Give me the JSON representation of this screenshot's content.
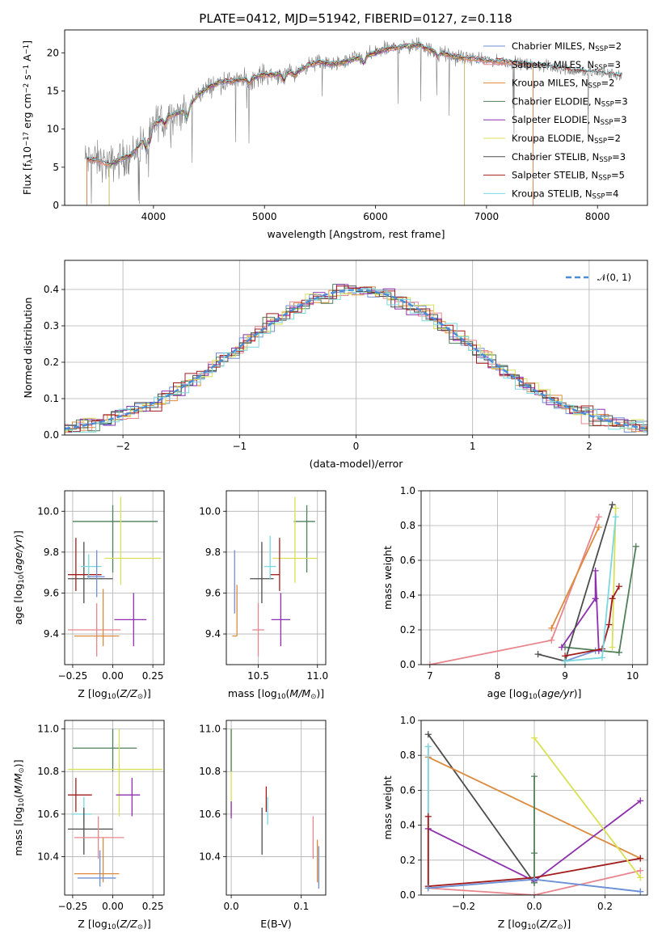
{
  "figure": {
    "title": "PLATE=0412, MJD=51942, FIBERID=0127, z=0.118"
  },
  "colors": {
    "Chabrier MILES": "#6f8fd6",
    "Salpeter MILES": "#e8868e",
    "Kroupa MILES": "#dc8a3c",
    "Chabrier ELODIE": "#4f7f59",
    "Salpeter ELODIE": "#8e2fae",
    "Kroupa ELODIE": "#d8e055",
    "Chabrier STELIB": "#4d4d4d",
    "Salpeter STELIB": "#a31c1c",
    "Kroupa STELIB": "#7ad8e0",
    "normal": "#4a8cd8",
    "data": "#7f7f7f"
  },
  "chart_data": [
    {
      "id": "spectrum",
      "type": "line",
      "xlabel": "wavelength [Angstrom, rest frame]",
      "ylabel": "Flux [f_λ10^-17 erg cm^-2 s^-1 A^-1]",
      "xlim": [
        3200,
        8450
      ],
      "ylim": [
        0,
        23
      ],
      "xticks": [
        4000,
        5000,
        6000,
        7000,
        8000
      ],
      "yticks": [
        0,
        5,
        10,
        15,
        20
      ],
      "grid": false,
      "legend_placement": "right",
      "legend": [
        {
          "label": "Chabrier MILES, N",
          "sub": "SSP",
          "suffix": "=2",
          "color": "#6f8fd6"
        },
        {
          "label": "Salpeter MILES, N",
          "sub": "SSP",
          "suffix": "=3",
          "color": "#e8868e"
        },
        {
          "label": "Kroupa MILES, N",
          "sub": "SSP",
          "suffix": "=2",
          "color": "#dc8a3c"
        },
        {
          "label": "Chabrier ELODIE, N",
          "sub": "SSP",
          "suffix": "=3",
          "color": "#4f7f59"
        },
        {
          "label": "Salpeter ELODIE, N",
          "sub": "SSP",
          "suffix": "=3",
          "color": "#8e2fae"
        },
        {
          "label": "Kroupa ELODIE, N",
          "sub": "SSP",
          "suffix": "=2",
          "color": "#d8e055"
        },
        {
          "label": "Chabrier STELIB, N",
          "sub": "SSP",
          "suffix": "=3",
          "color": "#4d4d4d"
        },
        {
          "label": "Salpeter STELIB, N",
          "sub": "SSP",
          "suffix": "=5",
          "color": "#a31c1c"
        },
        {
          "label": "Kroupa STELIB, N",
          "sub": "SSP",
          "suffix": "=4",
          "color": "#7ad8e0"
        }
      ],
      "continuum": {
        "wavelength": [
          3400,
          3500,
          3600,
          3700,
          3800,
          3900,
          4000,
          4100,
          4200,
          4300,
          4400,
          4500,
          4600,
          4700,
          4800,
          4900,
          5000,
          5100,
          5200,
          5300,
          5400,
          5500,
          5600,
          5700,
          5800,
          5900,
          6000,
          6100,
          6200,
          6300,
          6400,
          6500,
          6600,
          6700,
          6800,
          6900,
          7000,
          7100,
          7200,
          7300,
          7400,
          7500,
          7600,
          7700,
          7800,
          7900,
          8000,
          8100,
          8200
        ],
        "flux": [
          6.0,
          5.9,
          5.3,
          6.0,
          6.6,
          8.4,
          10.5,
          11.5,
          12.0,
          12.5,
          14.5,
          15.5,
          16.2,
          16.3,
          16.5,
          16.7,
          17.2,
          17.1,
          17.4,
          17.6,
          18.4,
          18.8,
          18.5,
          18.7,
          19.2,
          19.5,
          20.0,
          20.5,
          20.7,
          20.9,
          21.0,
          20.3,
          20.0,
          19.5,
          19.3,
          19.2,
          19.0,
          18.9,
          18.8,
          18.6,
          18.4,
          18.3,
          18.1,
          17.9,
          17.6,
          17.5,
          17.4,
          17.2,
          17.0
        ]
      }
    },
    {
      "id": "residuals",
      "type": "line",
      "xlabel": "(data-model)/error",
      "ylabel": "Normed distribution",
      "xlim": [
        -2.5,
        2.5
      ],
      "ylim": [
        0,
        0.48
      ],
      "xticks": [
        -2,
        -1,
        0,
        1,
        2
      ],
      "yticks": [
        0.0,
        0.1,
        0.2,
        0.3,
        0.4
      ],
      "grid": true,
      "legend_placement": "top-right",
      "normal_label": "𝒩(0, 1)",
      "normal": {
        "mu": 0,
        "sigma": 1
      }
    },
    {
      "id": "age-vs-Z",
      "type": "scatter",
      "xlabel": "Z [log10(Z/Z⊙)]",
      "ylabel": "age [log10(age/yr)]",
      "xlim": [
        -0.3,
        0.32
      ],
      "ylim": [
        9.25,
        10.1
      ],
      "xticks": [
        -0.25,
        0.0,
        0.25
      ],
      "yticks": [
        9.4,
        9.6,
        9.8,
        10.0
      ],
      "grid": true,
      "points": [
        {
          "model": "Chabrier ELODIE",
          "x": 0.0,
          "xerr": [
            0.25,
            0.28
          ],
          "y": 9.95,
          "yerr": [
            0.25,
            0.08
          ]
        },
        {
          "model": "Kroupa ELODIE",
          "x": 0.05,
          "xerr": [
            0.1,
            0.25
          ],
          "y": 9.77,
          "yerr": [
            0.13,
            0.3
          ]
        },
        {
          "model": "Chabrier STELIB",
          "x": -0.18,
          "xerr": [
            0.1,
            0.18
          ],
          "y": 9.67,
          "yerr": [
            0.12,
            0.18
          ]
        },
        {
          "model": "Salpeter STELIB",
          "x": -0.23,
          "xerr": [
            0.05,
            0.16
          ],
          "y": 9.69,
          "yerr": [
            0.08,
            0.18
          ]
        },
        {
          "model": "Kroupa STELIB",
          "x": -0.15,
          "xerr": [
            0.05,
            0.08
          ],
          "y": 9.73,
          "yerr": [
            0.06,
            0.06
          ]
        },
        {
          "model": "Chabrier MILES",
          "x": -0.1,
          "xerr": [
            0.06,
            0.05
          ],
          "y": 9.68,
          "yerr": [
            0.1,
            0.13
          ]
        },
        {
          "model": "Salpeter ELODIE",
          "x": 0.13,
          "xerr": [
            0.12,
            0.08
          ],
          "y": 9.47,
          "yerr": [
            0.13,
            0.13
          ]
        },
        {
          "model": "Salpeter MILES",
          "x": -0.1,
          "xerr": [
            0.18,
            0.15
          ],
          "y": 9.42,
          "yerr": [
            0.13,
            0.13
          ]
        },
        {
          "model": "Kroupa MILES",
          "x": -0.06,
          "xerr": [
            0.18,
            0.1
          ],
          "y": 9.39,
          "yerr": [
            0.05,
            0.23
          ]
        }
      ]
    },
    {
      "id": "age-vs-mass",
      "type": "scatter",
      "xlabel": "mass [log10(M/M⊙)]",
      "ylabel": "",
      "xlim": [
        10.23,
        11.07
      ],
      "ylim": [
        9.25,
        10.1
      ],
      "xticks": [
        10.5,
        11.0
      ],
      "yticks": [
        9.4,
        9.6,
        9.8,
        10.0
      ],
      "grid": true,
      "points": [
        {
          "model": "Chabrier ELODIE",
          "x": 10.91,
          "xerr": [
            0.11,
            0.07
          ],
          "y": 9.95,
          "yerr": [
            0.25,
            0.08
          ]
        },
        {
          "model": "Kroupa ELODIE",
          "x": 10.81,
          "xerr": [
            0.19,
            0.19
          ],
          "y": 9.77,
          "yerr": [
            0.12,
            0.3
          ]
        },
        {
          "model": "Chabrier STELIB",
          "x": 10.53,
          "xerr": [
            0.1,
            0.1
          ],
          "y": 9.67,
          "yerr": [
            0.12,
            0.18
          ]
        },
        {
          "model": "Salpeter STELIB",
          "x": 10.68,
          "xerr": [
            0.08,
            0.0
          ],
          "y": 9.69,
          "yerr": [
            0.08,
            0.18
          ]
        },
        {
          "model": "Kroupa STELIB",
          "x": 10.6,
          "xerr": [
            0.05,
            0.05
          ],
          "y": 9.73,
          "yerr": [
            0.06,
            0.15
          ]
        },
        {
          "model": "Chabrier MILES",
          "x": 10.3,
          "xerr": [
            0.0,
            0.0
          ],
          "y": 9.68,
          "yerr": [
            0.18,
            0.13
          ]
        },
        {
          "model": "Salpeter ELODIE",
          "x": 10.69,
          "xerr": [
            0.08,
            0.08
          ],
          "y": 9.47,
          "yerr": [
            0.13,
            0.13
          ]
        },
        {
          "model": "Salpeter MILES",
          "x": 10.5,
          "xerr": [
            0.05,
            0.05
          ],
          "y": 9.42,
          "yerr": [
            0.13,
            0.13
          ]
        },
        {
          "model": "Kroupa MILES",
          "x": 10.32,
          "xerr": [
            0.04,
            0.0
          ],
          "y": 9.39,
          "yerr": [
            0.0,
            0.25
          ]
        }
      ]
    },
    {
      "id": "weight-vs-age",
      "type": "line",
      "xlabel": "age [log10(age/yr)]",
      "ylabel": "mass weight",
      "xlim": [
        6.87,
        10.22
      ],
      "ylim": [
        0,
        1.0
      ],
      "xticks": [
        7,
        8,
        9,
        10
      ],
      "yticks": [
        0.0,
        0.2,
        0.4,
        0.6,
        0.8,
        1.0
      ],
      "grid": true,
      "series": [
        {
          "model": "Salpeter MILES",
          "x": [
            7.0,
            8.8,
            9.5
          ],
          "y": [
            0.0,
            0.14,
            0.85
          ]
        },
        {
          "model": "Kroupa MILES",
          "x": [
            8.8,
            9.5
          ],
          "y": [
            0.21,
            0.79
          ]
        },
        {
          "model": "Chabrier MILES",
          "x": [
            9.0,
            9.45
          ],
          "y": [
            0.02,
            0.08
          ]
        },
        {
          "model": "Chabrier ELODIE",
          "x": [
            9.0,
            9.8,
            10.05
          ],
          "y": [
            0.1,
            0.07,
            0.68
          ]
        },
        {
          "model": "Salpeter ELODIE",
          "x": [
            8.95,
            9.45,
            9.45,
            9.5
          ],
          "y": [
            0.1,
            0.38,
            0.54,
            0.08
          ]
        },
        {
          "model": "Kroupa ELODIE",
          "x": [
            9.7,
            9.75
          ],
          "y": [
            0.1,
            0.9
          ]
        },
        {
          "model": "Chabrier STELIB",
          "x": [
            8.6,
            9.0,
            9.7
          ],
          "y": [
            0.06,
            0.02,
            0.92
          ]
        },
        {
          "model": "Salpeter STELIB",
          "x": [
            9.0,
            9.55,
            9.65,
            9.7,
            9.8
          ],
          "y": [
            0.05,
            0.09,
            0.23,
            0.38,
            0.45
          ]
        },
        {
          "model": "Kroupa STELIB",
          "x": [
            9.0,
            9.55,
            9.75
          ],
          "y": [
            0.02,
            0.04,
            0.85
          ]
        }
      ]
    },
    {
      "id": "mass-vs-Z",
      "type": "scatter",
      "xlabel": "Z [log10(Z/Z⊙)]",
      "ylabel": "mass [log10(M/M⊙)]",
      "xlim": [
        -0.3,
        0.32
      ],
      "ylim": [
        10.22,
        11.04
      ],
      "xticks": [
        -0.25,
        0.0,
        0.25
      ],
      "yticks": [
        10.4,
        10.6,
        10.8,
        11.0
      ],
      "grid": true,
      "points": [
        {
          "model": "Chabrier ELODIE",
          "x": 0.0,
          "xerr": [
            0.25,
            0.15
          ],
          "y": 10.91,
          "yerr": [
            0.11,
            0.09
          ]
        },
        {
          "model": "Kroupa ELODIE",
          "x": 0.04,
          "xerr": [
            0.32,
            0.27
          ],
          "y": 10.81,
          "yerr": [
            0.22,
            0.19
          ]
        },
        {
          "model": "Salpeter ELODIE",
          "x": 0.12,
          "xerr": [
            0.1,
            0.05
          ],
          "y": 10.69,
          "yerr": [
            0.1,
            0.08
          ]
        },
        {
          "model": "Salpeter STELIB",
          "x": -0.23,
          "xerr": [
            0.05,
            0.1
          ],
          "y": 10.69,
          "yerr": [
            0.08,
            0.08
          ]
        },
        {
          "model": "Kroupa STELIB",
          "x": -0.18,
          "xerr": [
            0.08,
            0.05
          ],
          "y": 10.6,
          "yerr": [
            0.05,
            0.08
          ]
        },
        {
          "model": "Chabrier STELIB",
          "x": -0.18,
          "xerr": [
            0.1,
            0.18
          ],
          "y": 10.53,
          "yerr": [
            0.12,
            0.1
          ]
        },
        {
          "model": "Salpeter MILES",
          "x": -0.09,
          "xerr": [
            0.15,
            0.16
          ],
          "y": 10.49,
          "yerr": [
            0.1,
            0.1
          ]
        },
        {
          "model": "Kroupa MILES",
          "x": -0.06,
          "xerr": [
            0.18,
            0.1
          ],
          "y": 10.32,
          "yerr": [
            0.04,
            0.17
          ]
        },
        {
          "model": "Chabrier MILES",
          "x": -0.08,
          "xerr": [
            0.14,
            0.1
          ],
          "y": 10.3,
          "yerr": [
            0.04,
            0.13
          ]
        }
      ]
    },
    {
      "id": "mass-vs-EBV",
      "type": "scatter",
      "xlabel": "E(B-V)",
      "ylabel": "",
      "xlim": [
        -0.007,
        0.135
      ],
      "ylim": [
        10.22,
        11.04
      ],
      "xticks": [
        0.0,
        0.1
      ],
      "yticks": [
        10.4,
        10.6,
        10.8,
        11.0
      ],
      "grid": true,
      "points": [
        {
          "model": "Kroupa ELODIE",
          "x": 0.0,
          "y": 10.81,
          "yerr": [
            0.22,
            0.19
          ]
        },
        {
          "model": "Chabrier ELODIE",
          "x": 0.0,
          "y": 10.91,
          "yerr": [
            0.11,
            0.09
          ]
        },
        {
          "model": "Salpeter ELODIE",
          "x": 0.0,
          "y": 10.62,
          "yerr": [
            0.04,
            0.04
          ]
        },
        {
          "model": "Chabrier STELIB",
          "x": 0.044,
          "y": 10.52,
          "yerr": [
            0.11,
            0.11
          ]
        },
        {
          "model": "Salpeter STELIB",
          "x": 0.05,
          "y": 10.69,
          "yerr": [
            0.08,
            0.04
          ]
        },
        {
          "model": "Kroupa STELIB",
          "x": 0.052,
          "y": 10.6,
          "yerr": [
            0.05,
            0.08
          ]
        },
        {
          "model": "Salpeter MILES",
          "x": 0.117,
          "y": 10.49,
          "yerr": [
            0.1,
            0.1
          ]
        },
        {
          "model": "Kroupa MILES",
          "x": 0.123,
          "y": 10.38,
          "yerr": [
            0.1,
            0.1
          ]
        },
        {
          "model": "Chabrier MILES",
          "x": 0.125,
          "y": 10.35,
          "yerr": [
            0.1,
            0.1
          ]
        }
      ]
    },
    {
      "id": "weight-vs-Z",
      "type": "line",
      "xlabel": "Z [log10(Z/Z⊙)]",
      "ylabel": "mass weight",
      "xlim": [
        -0.32,
        0.32
      ],
      "ylim": [
        0,
        1.0
      ],
      "xticks": [
        -0.2,
        0.0,
        0.2
      ],
      "yticks": [
        0.0,
        0.2,
        0.4,
        0.6,
        0.8,
        1.0
      ],
      "grid": true,
      "series": [
        {
          "model": "Chabrier STELIB",
          "x": [
            -0.3,
            0.0
          ],
          "y": [
            0.92,
            0.07
          ]
        },
        {
          "model": "Kroupa MILES",
          "x": [
            -0.3,
            0.3
          ],
          "y": [
            0.79,
            0.21
          ]
        },
        {
          "model": "Salpeter MILES",
          "x": [
            -0.3,
            -0.3,
            0.0,
            0.3
          ],
          "y": [
            0.85,
            0.04,
            0.0,
            0.14
          ]
        },
        {
          "model": "Kroupa STELIB",
          "x": [
            -0.3,
            -0.3,
            0.0,
            0.3
          ],
          "y": [
            0.85,
            0.04,
            0.09,
            0.02
          ]
        },
        {
          "model": "Salpeter ELODIE",
          "x": [
            -0.3,
            0.0,
            0.3
          ],
          "y": [
            0.38,
            0.08,
            0.54
          ]
        },
        {
          "model": "Salpeter STELIB",
          "x": [
            -0.3,
            -0.3,
            0.0,
            0.3
          ],
          "y": [
            0.45,
            0.05,
            0.1,
            0.21
          ]
        },
        {
          "model": "Kroupa ELODIE",
          "x": [
            0.0,
            0.3
          ],
          "y": [
            0.9,
            0.1
          ]
        },
        {
          "model": "Chabrier ELODIE",
          "x": [
            0.0,
            0.0,
            0.0
          ],
          "y": [
            0.68,
            0.24,
            0.07
          ]
        },
        {
          "model": "Chabrier MILES",
          "x": [
            -0.3,
            0.0,
            0.3
          ],
          "y": [
            0.04,
            0.09,
            0.02
          ]
        }
      ]
    }
  ]
}
